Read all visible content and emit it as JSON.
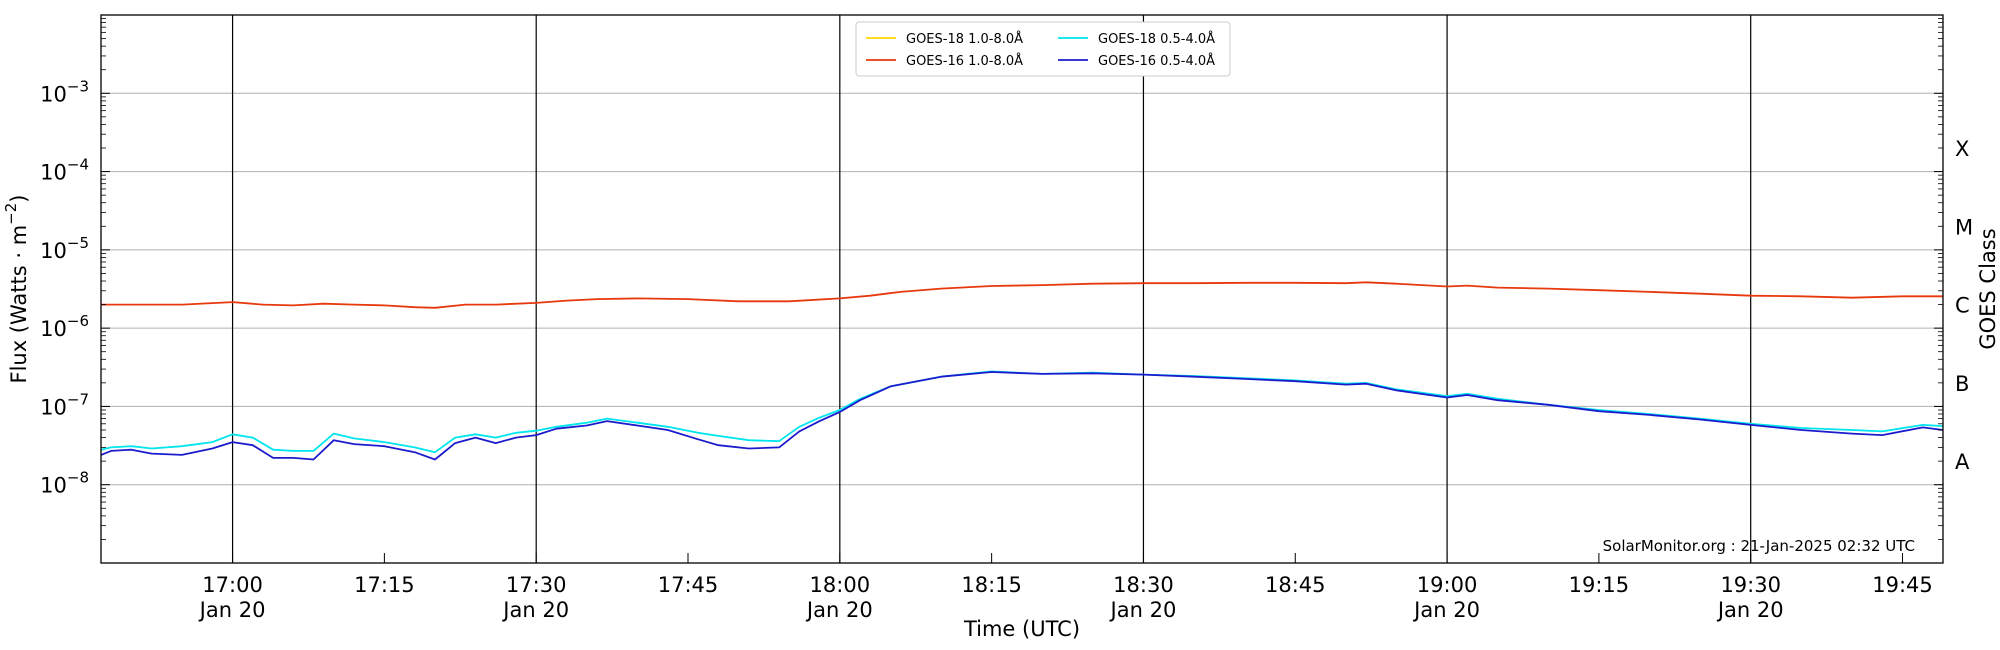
{
  "chart_data": {
    "type": "line",
    "xlabel": "Time (UTC)",
    "ylabel": "Flux (Watts · m⁻²)",
    "ylabel_right": "GOES Class",
    "y_scale": "log",
    "ylim": [
      1e-09,
      0.01
    ],
    "y_tick_values": [
      1e-08,
      1e-07,
      1e-06,
      1e-05,
      0.0001,
      0.001
    ],
    "y_tick_labels": [
      {
        "base": "10",
        "exp": "−8"
      },
      {
        "base": "10",
        "exp": "−7"
      },
      {
        "base": "10",
        "exp": "−6"
      },
      {
        "base": "10",
        "exp": "−5"
      },
      {
        "base": "10",
        "exp": "−4"
      },
      {
        "base": "10",
        "exp": "−3"
      }
    ],
    "xlim": [
      "2025-01-20 16:47",
      "2025-01-20 19:49"
    ],
    "x_ticks": [
      {
        "time": "2025-01-20 17:00",
        "label": "17:00",
        "date": "Jan 20"
      },
      {
        "time": "2025-01-20 17:15",
        "label": "17:15",
        "date": ""
      },
      {
        "time": "2025-01-20 17:30",
        "label": "17:30",
        "date": "Jan 20"
      },
      {
        "time": "2025-01-20 17:45",
        "label": "17:45",
        "date": ""
      },
      {
        "time": "2025-01-20 18:00",
        "label": "18:00",
        "date": "Jan 20"
      },
      {
        "time": "2025-01-20 18:15",
        "label": "18:15",
        "date": ""
      },
      {
        "time": "2025-01-20 18:30",
        "label": "18:30",
        "date": "Jan 20"
      },
      {
        "time": "2025-01-20 18:45",
        "label": "18:45",
        "date": ""
      },
      {
        "time": "2025-01-20 19:00",
        "label": "19:00",
        "date": "Jan 20"
      },
      {
        "time": "2025-01-20 19:15",
        "label": "19:15",
        "date": ""
      },
      {
        "time": "2025-01-20 19:30",
        "label": "19:30",
        "date": "Jan 20"
      },
      {
        "time": "2025-01-20 19:45",
        "label": "19:45",
        "date": ""
      }
    ],
    "vertical_lines": [
      "2025-01-20 17:00",
      "2025-01-20 17:30",
      "2025-01-20 18:00",
      "2025-01-20 18:30",
      "2025-01-20 19:00",
      "2025-01-20 19:30"
    ],
    "goes_classes": [
      {
        "label": "A",
        "flux": 2e-08
      },
      {
        "label": "B",
        "flux": 2e-07
      },
      {
        "label": "C",
        "flux": 2e-06
      },
      {
        "label": "M",
        "flux": 2e-05
      },
      {
        "label": "X",
        "flux": 0.0002
      }
    ],
    "grid": "horizontal at decades",
    "legend_position": "top-center",
    "credit": "SolarMonitor.org : 21-Jan-2025 02:32 UTC",
    "series": [
      {
        "name": "GOES-18 1.0-8.0Å",
        "color": "#ffd700",
        "x": [],
        "y": []
      },
      {
        "name": "GOES-16 1.0-8.0Å",
        "color": "#e8380d",
        "x": [
          "2025-01-20 16:47",
          "2025-01-20 16:50",
          "2025-01-20 16:55",
          "2025-01-20 17:00",
          "2025-01-20 17:03",
          "2025-01-20 17:06",
          "2025-01-20 17:09",
          "2025-01-20 17:12",
          "2025-01-20 17:15",
          "2025-01-20 17:18",
          "2025-01-20 17:20",
          "2025-01-20 17:23",
          "2025-01-20 17:26",
          "2025-01-20 17:30",
          "2025-01-20 17:33",
          "2025-01-20 17:36",
          "2025-01-20 17:40",
          "2025-01-20 17:45",
          "2025-01-20 17:50",
          "2025-01-20 17:55",
          "2025-01-20 18:00",
          "2025-01-20 18:03",
          "2025-01-20 18:06",
          "2025-01-20 18:10",
          "2025-01-20 18:15",
          "2025-01-20 18:20",
          "2025-01-20 18:25",
          "2025-01-20 18:30",
          "2025-01-20 18:35",
          "2025-01-20 18:40",
          "2025-01-20 18:45",
          "2025-01-20 18:50",
          "2025-01-20 18:52",
          "2025-01-20 18:55",
          "2025-01-20 19:00",
          "2025-01-20 19:02",
          "2025-01-20 19:05",
          "2025-01-20 19:10",
          "2025-01-20 19:15",
          "2025-01-20 19:20",
          "2025-01-20 19:25",
          "2025-01-20 19:30",
          "2025-01-20 19:35",
          "2025-01-20 19:40",
          "2025-01-20 19:45",
          "2025-01-20 19:49"
        ],
        "y": [
          2e-06,
          2e-06,
          2e-06,
          2.15e-06,
          2e-06,
          1.95e-06,
          2.05e-06,
          2e-06,
          1.95e-06,
          1.85e-06,
          1.82e-06,
          2e-06,
          2e-06,
          2.1e-06,
          2.25e-06,
          2.35e-06,
          2.4e-06,
          2.35e-06,
          2.2e-06,
          2.2e-06,
          2.4e-06,
          2.6e-06,
          2.9e-06,
          3.2e-06,
          3.45e-06,
          3.55e-06,
          3.7e-06,
          3.75e-06,
          3.75e-06,
          3.8e-06,
          3.8e-06,
          3.75e-06,
          3.85e-06,
          3.7e-06,
          3.4e-06,
          3.5e-06,
          3.3e-06,
          3.2e-06,
          3.05e-06,
          2.9e-06,
          2.75e-06,
          2.6e-06,
          2.55e-06,
          2.45e-06,
          2.55e-06,
          2.55e-06
        ]
      },
      {
        "name": "GOES-18 0.5-4.0Å",
        "color": "#00e5ee",
        "x": [
          "2025-01-20 16:47",
          "2025-01-20 16:48",
          "2025-01-20 16:50",
          "2025-01-20 16:52",
          "2025-01-20 16:55",
          "2025-01-20 16:58",
          "2025-01-20 17:00",
          "2025-01-20 17:02",
          "2025-01-20 17:04",
          "2025-01-20 17:06",
          "2025-01-20 17:08",
          "2025-01-20 17:10",
          "2025-01-20 17:12",
          "2025-01-20 17:15",
          "2025-01-20 17:18",
          "2025-01-20 17:20",
          "2025-01-20 17:22",
          "2025-01-20 17:24",
          "2025-01-20 17:26",
          "2025-01-20 17:28",
          "2025-01-20 17:30",
          "2025-01-20 17:32",
          "2025-01-20 17:35",
          "2025-01-20 17:37",
          "2025-01-20 17:40",
          "2025-01-20 17:43",
          "2025-01-20 17:46",
          "2025-01-20 17:48",
          "2025-01-20 17:51",
          "2025-01-20 17:54",
          "2025-01-20 17:56",
          "2025-01-20 17:58",
          "2025-01-20 18:00",
          "2025-01-20 18:02",
          "2025-01-20 18:05",
          "2025-01-20 18:10",
          "2025-01-20 18:15",
          "2025-01-20 18:20",
          "2025-01-20 18:25",
          "2025-01-20 18:30",
          "2025-01-20 18:35",
          "2025-01-20 18:40",
          "2025-01-20 18:45",
          "2025-01-20 18:50",
          "2025-01-20 18:52",
          "2025-01-20 18:55",
          "2025-01-20 19:00",
          "2025-01-20 19:02",
          "2025-01-20 19:05",
          "2025-01-20 19:10",
          "2025-01-20 19:15",
          "2025-01-20 19:20",
          "2025-01-20 19:25",
          "2025-01-20 19:30",
          "2025-01-20 19:35",
          "2025-01-20 19:40",
          "2025-01-20 19:43",
          "2025-01-20 19:47",
          "2025-01-20 19:49"
        ],
        "y": [
          2.8e-08,
          3e-08,
          3.1e-08,
          2.9e-08,
          3.1e-08,
          3.5e-08,
          4.4e-08,
          4e-08,
          2.8e-08,
          2.7e-08,
          2.7e-08,
          4.5e-08,
          3.9e-08,
          3.5e-08,
          3e-08,
          2.6e-08,
          4e-08,
          4.4e-08,
          4e-08,
          4.6e-08,
          4.9e-08,
          5.5e-08,
          6.2e-08,
          7e-08,
          6.2e-08,
          5.5e-08,
          4.6e-08,
          4.2e-08,
          3.7e-08,
          3.6e-08,
          5.5e-08,
          7.2e-08,
          9e-08,
          1.25e-07,
          1.8e-07,
          2.4e-07,
          2.8e-07,
          2.6e-07,
          2.7e-07,
          2.55e-07,
          2.45e-07,
          2.3e-07,
          2.15e-07,
          1.95e-07,
          2e-07,
          1.65e-07,
          1.35e-07,
          1.45e-07,
          1.25e-07,
          1.05e-07,
          9e-08,
          8e-08,
          7e-08,
          6e-08,
          5.3e-08,
          5e-08,
          4.8e-08,
          5.8e-08,
          5.6e-08
        ]
      },
      {
        "name": "GOES-16 0.5-4.0Å",
        "color": "#1c1ccc",
        "x": [
          "2025-01-20 16:47",
          "2025-01-20 16:48",
          "2025-01-20 16:50",
          "2025-01-20 16:52",
          "2025-01-20 16:55",
          "2025-01-20 16:58",
          "2025-01-20 17:00",
          "2025-01-20 17:02",
          "2025-01-20 17:04",
          "2025-01-20 17:06",
          "2025-01-20 17:08",
          "2025-01-20 17:10",
          "2025-01-20 17:12",
          "2025-01-20 17:15",
          "2025-01-20 17:18",
          "2025-01-20 17:20",
          "2025-01-20 17:22",
          "2025-01-20 17:24",
          "2025-01-20 17:26",
          "2025-01-20 17:28",
          "2025-01-20 17:30",
          "2025-01-20 17:32",
          "2025-01-20 17:35",
          "2025-01-20 17:37",
          "2025-01-20 17:40",
          "2025-01-20 17:43",
          "2025-01-20 17:46",
          "2025-01-20 17:48",
          "2025-01-20 17:51",
          "2025-01-20 17:54",
          "2025-01-20 17:56",
          "2025-01-20 17:58",
          "2025-01-20 18:00",
          "2025-01-20 18:02",
          "2025-01-20 18:05",
          "2025-01-20 18:10",
          "2025-01-20 18:15",
          "2025-01-20 18:20",
          "2025-01-20 18:25",
          "2025-01-20 18:30",
          "2025-01-20 18:35",
          "2025-01-20 18:40",
          "2025-01-20 18:45",
          "2025-01-20 18:50",
          "2025-01-20 18:52",
          "2025-01-20 18:55",
          "2025-01-20 19:00",
          "2025-01-20 19:02",
          "2025-01-20 19:05",
          "2025-01-20 19:10",
          "2025-01-20 19:15",
          "2025-01-20 19:20",
          "2025-01-20 19:25",
          "2025-01-20 19:30",
          "2025-01-20 19:35",
          "2025-01-20 19:40",
          "2025-01-20 19:43",
          "2025-01-20 19:47",
          "2025-01-20 19:49"
        ],
        "y": [
          2.4e-08,
          2.7e-08,
          2.8e-08,
          2.5e-08,
          2.4e-08,
          2.9e-08,
          3.5e-08,
          3.2e-08,
          2.2e-08,
          2.2e-08,
          2.1e-08,
          3.7e-08,
          3.3e-08,
          3.1e-08,
          2.6e-08,
          2.1e-08,
          3.4e-08,
          4e-08,
          3.4e-08,
          4e-08,
          4.3e-08,
          5.2e-08,
          5.7e-08,
          6.5e-08,
          5.7e-08,
          5e-08,
          3.8e-08,
          3.2e-08,
          2.9e-08,
          3e-08,
          4.8e-08,
          6.5e-08,
          8.5e-08,
          1.2e-07,
          1.8e-07,
          2.4e-07,
          2.75e-07,
          2.6e-07,
          2.65e-07,
          2.55e-07,
          2.4e-07,
          2.25e-07,
          2.1e-07,
          1.9e-07,
          1.95e-07,
          1.6e-07,
          1.3e-07,
          1.4e-07,
          1.2e-07,
          1.05e-07,
          8.7e-08,
          7.8e-08,
          6.8e-08,
          5.8e-08,
          5e-08,
          4.5e-08,
          4.3e-08,
          5.4e-08,
          5e-08
        ]
      }
    ]
  }
}
